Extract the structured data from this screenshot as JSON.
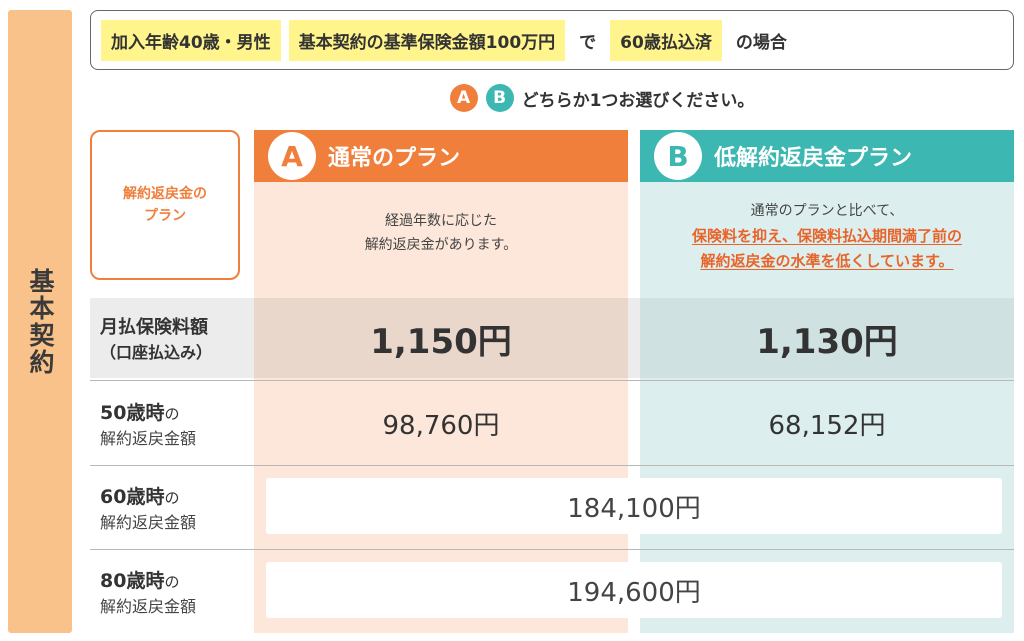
{
  "side_label": "基本契約",
  "condition": {
    "item1": "加入年齢40歳・男性",
    "item2": "基本契約の基準保険金額100万円",
    "connector": "で",
    "item3": "60歳払込済",
    "suffix": "の場合"
  },
  "choose": {
    "badge_a": "A",
    "badge_b": "B",
    "text": "どちらか1つお選びください。"
  },
  "plan_label": {
    "line1": "解約返戻金の",
    "line2": "プラン"
  },
  "plan_a": {
    "badge": "A",
    "title": "通常のプラン",
    "desc_line1": "経過年数に応じた",
    "desc_line2": "解約返戻金があります。",
    "premium": "1,150円",
    "refund_50": "98,760円"
  },
  "plan_b": {
    "badge": "B",
    "title": "低解約返戻金プラン",
    "desc_line1": "通常のプランと比べて、",
    "desc_line2": "保険料を抑え、保険料払込期間満了前の",
    "desc_line3": "解約返戻金の水準を低くしています。",
    "premium": "1,130円",
    "refund_50": "68,152円"
  },
  "rows": {
    "premium_label1": "月払保険料額",
    "premium_label2": "（口座払込み）",
    "age50_strong": "50歳時",
    "age60_strong": "60歳時",
    "age80_strong": "80歳時",
    "age_suffix": "の",
    "refund_label": "解約返戻金額"
  },
  "shared": {
    "refund_60": "184,100円",
    "refund_80": "194,600円"
  },
  "colors": {
    "orange": "#f07f3c",
    "teal": "#3db7b2",
    "highlight": "#fff58c",
    "side": "#f8c28a"
  }
}
